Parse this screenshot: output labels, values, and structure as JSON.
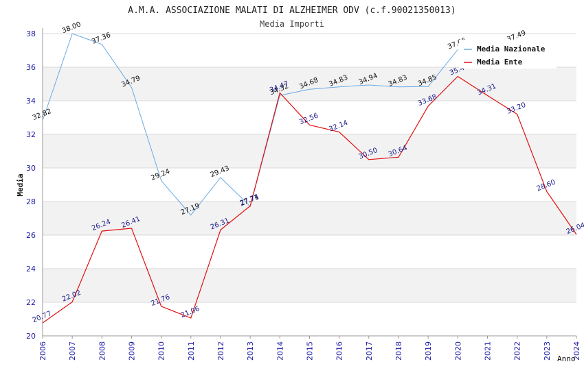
{
  "chart_data": {
    "type": "line",
    "title": "A.M.A. ASSOCIAZIONE MALATI DI ALZHEIMER ODV (c.f.90021350013)",
    "subtitle": "Media Importi",
    "xlabel": "Anno",
    "ylabel": "Media",
    "ylim": [
      20,
      38
    ],
    "yticks": [
      "20",
      "22",
      "24",
      "26",
      "28",
      "30",
      "32",
      "34",
      "36",
      "38"
    ],
    "categories": [
      "2006",
      "2007",
      "2008",
      "2009",
      "2010",
      "2011",
      "2012",
      "2013",
      "2014",
      "2015",
      "2016",
      "2017",
      "2018",
      "2019",
      "2020",
      "2021",
      "2022",
      "2023",
      "2024"
    ],
    "series": [
      {
        "name": "Media Nazionale",
        "color": "#6aaae4",
        "values": [
          32.82,
          38.0,
          37.36,
          34.79,
          29.24,
          27.19,
          29.43,
          27.71,
          34.32,
          34.68,
          34.83,
          34.94,
          34.83,
          34.85,
          37.05,
          null,
          37.49,
          null,
          null
        ],
        "labels": [
          "32.82",
          "38.00",
          "37.36",
          "34.79",
          "29.24",
          "27.19",
          "29.43",
          "27.71",
          "34.32",
          "34.68",
          "34.83",
          "34.94",
          "34.83",
          "34.85",
          "37.05",
          "",
          "37.49",
          "",
          ""
        ]
      },
      {
        "name": "Media Ente",
        "color": "#e01010",
        "values": [
          20.77,
          22.02,
          26.24,
          26.41,
          21.76,
          21.06,
          26.31,
          27.74,
          34.47,
          32.56,
          32.14,
          30.5,
          30.64,
          33.68,
          35.45,
          34.31,
          33.2,
          28.6,
          26.04
        ],
        "labels": [
          "20.77",
          "22.02",
          "26.24",
          "26.41",
          "21.76",
          "21.06",
          "26.31",
          "27.74",
          "34.47",
          "32.56",
          "32.14",
          "30.50",
          "30.64",
          "33.68",
          "35.4",
          "34.31",
          "33.20",
          "28.60",
          "26.04"
        ]
      }
    ],
    "grid": true,
    "legend": "top-right"
  }
}
